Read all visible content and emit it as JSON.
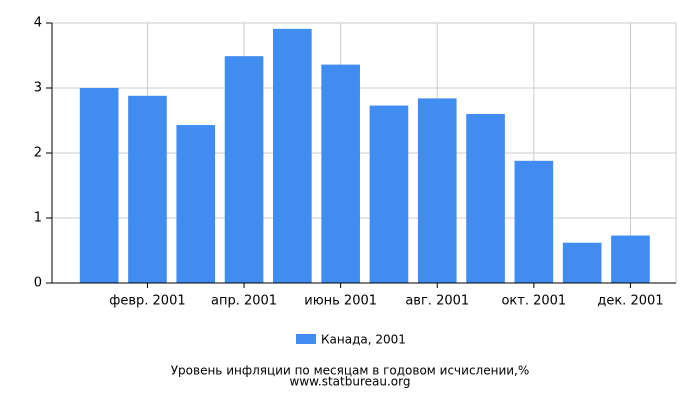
{
  "chart_data": {
    "type": "bar",
    "title": "Уровень инфляции по месяцам в годовом исчислении,%",
    "subtitle": "www.statbureau.org",
    "categories": [
      null,
      "февр. 2001",
      null,
      "апр. 2001",
      null,
      "июнь 2001",
      null,
      "авг. 2001",
      null,
      "окт. 2001",
      null,
      "дек. 2001"
    ],
    "series": [
      {
        "name": "Канада, 2001",
        "color": "#418cf0",
        "values": [
          3.0,
          2.88,
          2.43,
          3.49,
          3.91,
          3.36,
          2.73,
          2.84,
          2.6,
          1.88,
          0.62,
          0.73
        ]
      }
    ],
    "ylim": [
      0,
      4
    ],
    "yticks": [
      0,
      1,
      2,
      3,
      4
    ],
    "grid": true,
    "legend": "bottom"
  }
}
